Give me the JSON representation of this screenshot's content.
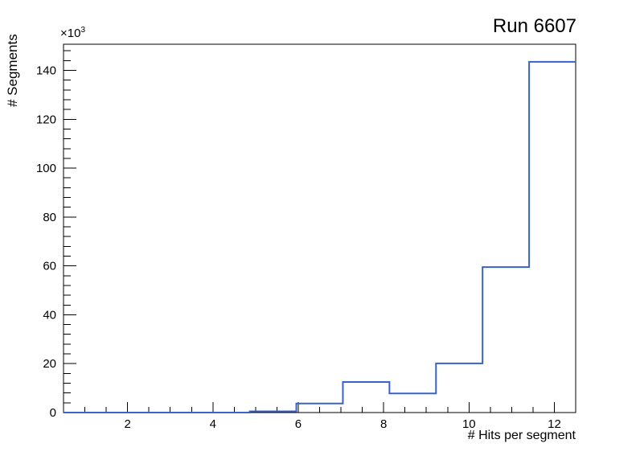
{
  "canvas": {
    "background": "#ffffff"
  },
  "chart_data": {
    "type": "histogram",
    "title": "Run 6607",
    "xlabel": "# Hits per segment",
    "ylabel": "# Segments",
    "y_multiplier": {
      "base": "×10",
      "exponent": "3"
    },
    "xlim": [
      0.5,
      12.5
    ],
    "ylim": [
      0,
      150700
    ],
    "bin_edges": [
      0.5,
      1.5909,
      2.6818,
      3.7727,
      4.8636,
      5.9545,
      7.0455,
      8.1364,
      9.2273,
      10.3182,
      11.4091,
      12.5
    ],
    "counts": [
      0,
      0,
      0,
      0,
      500,
      3700,
      12500,
      7800,
      20100,
      59500,
      143500
    ],
    "x_axis": {
      "major_ticks": [
        2,
        4,
        6,
        8,
        10,
        12
      ],
      "major_labels": [
        "2",
        "4",
        "6",
        "8",
        "10",
        "12"
      ],
      "minor_tick_start": 1.0,
      "minor_tick_step": 0.5
    },
    "y_axis": {
      "major_tick_step": 20000,
      "major_labels": [
        "0",
        "20",
        "40",
        "60",
        "80",
        "100",
        "120",
        "140"
      ],
      "minor_tick_step": 4000,
      "labels_in_thousands": true
    },
    "style": {
      "line_color": "#3864c8",
      "line_width": 2,
      "axis_color": "#000000",
      "grid": false,
      "legend": false
    }
  }
}
